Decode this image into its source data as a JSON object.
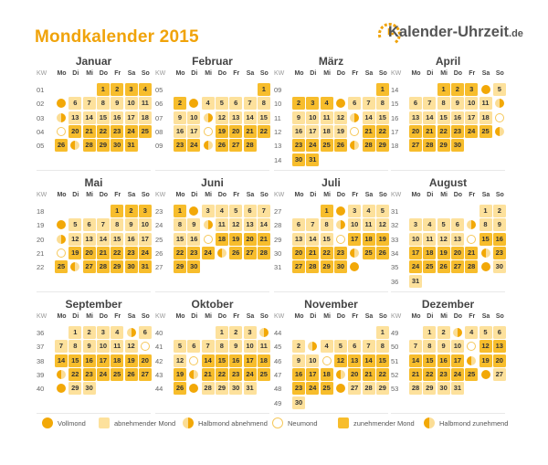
{
  "title": "Mondkalender 2015",
  "logo": {
    "text": "Kalender-Uhrzeit",
    "suffix": ".de",
    "icon": "clock-icon"
  },
  "header": {
    "kw": "KW",
    "days": [
      "Mo",
      "Di",
      "Mi",
      "Do",
      "Fr",
      "Sa",
      "So"
    ]
  },
  "colors": {
    "accent": "#f0a30a",
    "waxing": "#f7bd2c",
    "waning": "#fde19c",
    "moon": "#f2a807"
  },
  "legend": [
    {
      "key": "F",
      "label": "Vollmond"
    },
    {
      "key": "a",
      "label": "abnehmender Mond"
    },
    {
      "key": "H",
      "label": "Halbmond abnehmend"
    },
    {
      "key": "N",
      "label": "Neumond"
    },
    {
      "key": "w",
      "label": "zunehmender Mond"
    },
    {
      "key": "Z",
      "label": "Halbmond zunehmend"
    }
  ],
  "months": [
    {
      "name": "Januar",
      "first": 3,
      "days": 31,
      "kws": [
        "01",
        "02",
        "03",
        "04",
        "05"
      ],
      "p": "wwwwFaaaaaaHaaaaaaNwwwwwwwZwwww"
    },
    {
      "name": "Februar",
      "first": 6,
      "days": 28,
      "kws": [
        "05",
        "06",
        "07",
        "08",
        "09"
      ],
      "p": "wwFaaaaaaaHaaaaaaNwwwwwwZwww"
    },
    {
      "name": "März",
      "first": 6,
      "days": 31,
      "kws": [
        "09",
        "10",
        "11",
        "12",
        "13",
        "14"
      ],
      "p": "wwwwFaaaaaaaHaaaaaaNwwwwwwZwwww"
    },
    {
      "name": "April",
      "first": 2,
      "days": 30,
      "kws": [
        "14",
        "15",
        "16",
        "17",
        "18"
      ],
      "p": "wwwFaaaaaaaHaaaaaaNwwwwwwZwwww"
    },
    {
      "name": "Mai",
      "first": 4,
      "days": 31,
      "kws": [
        "18",
        "19",
        "20",
        "21",
        "22"
      ],
      "p": "wwwFaaaaaaHaaaaaaNwwwwwwwZwwwww"
    },
    {
      "name": "Juni",
      "first": 0,
      "days": 30,
      "kws": [
        "23",
        "24",
        "25",
        "26",
        "27"
      ],
      "p": "wFaaaaaaaHaaaaaaNwwwwwwwZwwwww"
    },
    {
      "name": "Juli",
      "first": 2,
      "days": 31,
      "kws": [
        "27",
        "28",
        "29",
        "30",
        "31"
      ],
      "p": "wFaaaaaaHaaaaaaNwwwwwwwZwwwwwwF"
    },
    {
      "name": "August",
      "first": 5,
      "days": 31,
      "kws": [
        "31",
        "32",
        "33",
        "34",
        "35",
        "36"
      ],
      "p": "aaaaaaHaaaaaaNwwwwwwwZwwwwwwFaa"
    },
    {
      "name": "September",
      "first": 1,
      "days": 30,
      "kws": [
        "36",
        "37",
        "38",
        "39",
        "40"
      ],
      "p": "aaaaHaaaaaaaNwwwwwwwZwwwwwwFaa"
    },
    {
      "name": "Oktober",
      "first": 3,
      "days": 31,
      "kws": [
        "40",
        "41",
        "42",
        "43",
        "44"
      ],
      "p": "aaaHaaaaaaaaNwwwwwwZwwwwwwFaaaa"
    },
    {
      "name": "November",
      "first": 6,
      "days": 30,
      "kws": [
        "44",
        "45",
        "46",
        "47",
        "48",
        "49"
      ],
      "p": "aaHaaaaaaaNwwwwwwwZwwwwwwFaaaa"
    },
    {
      "name": "Dezember",
      "first": 1,
      "days": 31,
      "kws": [
        "49",
        "50",
        "51",
        "52",
        "53"
      ],
      "p": "aaHaaaaaaaNwwwwwwZwwwwwwwFaaaaa"
    }
  ]
}
